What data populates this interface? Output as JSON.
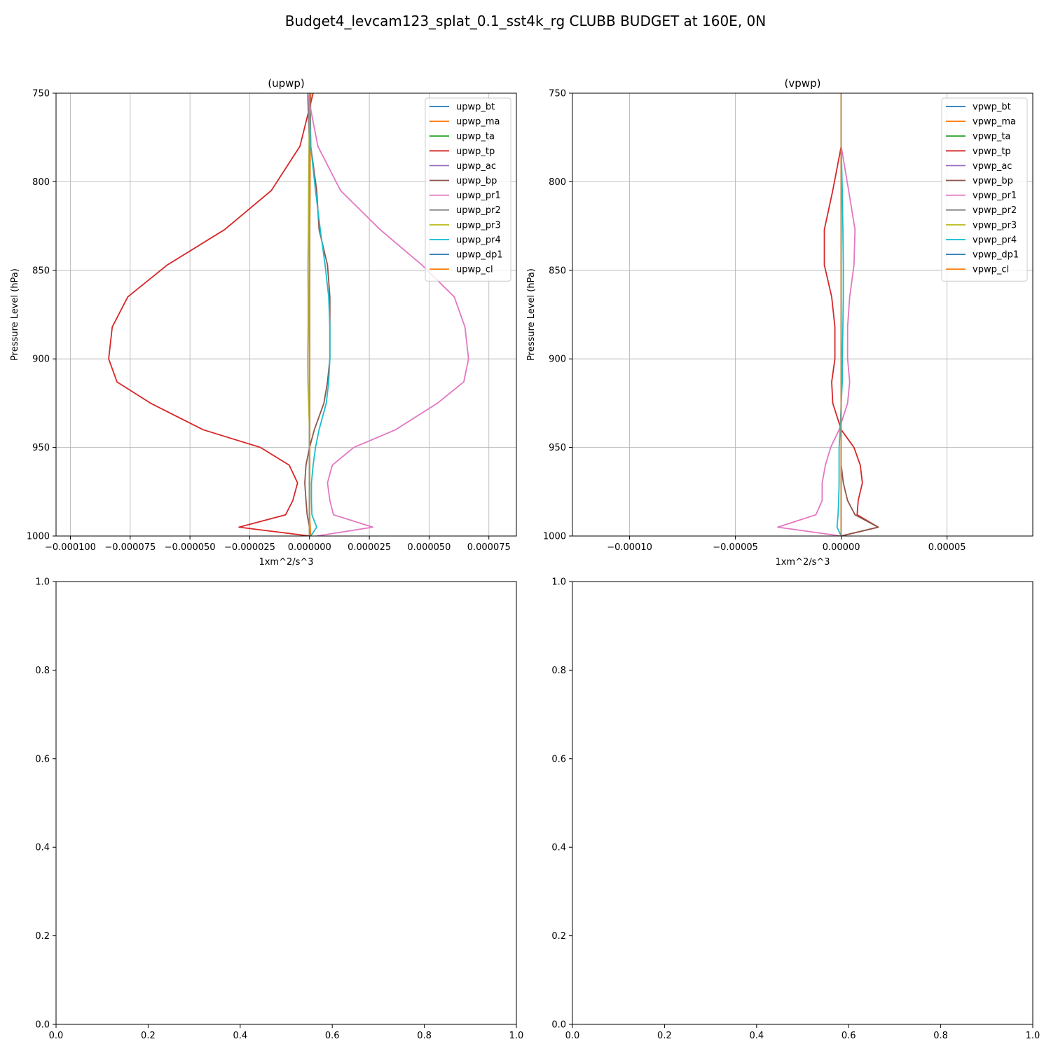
{
  "figure": {
    "suptitle": "Budget4_levcam123_splat_0.1_sst4k_rg CLUBB BUDGET at 160E, 0N"
  },
  "colors": {
    "bt": "#1f77b4",
    "ma": "#ff7f0e",
    "ta": "#2ca02c",
    "tp": "#d62728",
    "ac": "#9467bd",
    "bp": "#8c564b",
    "pr1": "#e377c2",
    "pr2": "#7f7f7f",
    "pr3": "#bcbd22",
    "pr4": "#17becf",
    "dp1": "#1f77b4",
    "cl": "#ff7f0e",
    "grid": "#b0b0b0",
    "axis": "#000000"
  },
  "chart_data": [
    {
      "type": "line",
      "title": "(upwp)",
      "xlabel": "1xm^2/s^3",
      "ylabel": "Pressure Level (hPa)",
      "xlim": [
        -0.000106,
        8.65e-05
      ],
      "ylim": [
        1000,
        750
      ],
      "y_inverted": true,
      "grid": true,
      "legend": "top-right",
      "xticks": [
        -0.0001,
        -7.5e-05,
        -5e-05,
        -2.5e-05,
        0,
        2.5e-05,
        5e-05,
        7.5e-05
      ],
      "xtick_labels": [
        "−0.000100",
        "−0.000075",
        "−0.000050",
        "−0.000025",
        "0.000000",
        "0.000025",
        "0.000050",
        "0.000075"
      ],
      "yticks": [
        750,
        800,
        850,
        900,
        950,
        1000
      ],
      "ytick_labels": [
        "750",
        "800",
        "850",
        "900",
        "950",
        "1000"
      ],
      "levels": [
        750,
        780,
        805,
        827,
        847,
        865,
        882,
        900,
        913,
        925,
        940,
        950,
        960,
        970,
        980,
        988,
        995,
        1000
      ],
      "series": [
        {
          "name": "upwp_bt",
          "color_key": "bt",
          "values": [
            0,
            0,
            0,
            0,
            0,
            0,
            0,
            0,
            0,
            0,
            0,
            0,
            0,
            0,
            0,
            0,
            0,
            0
          ]
        },
        {
          "name": "upwp_ma",
          "color_key": "ma",
          "values": [
            5e-07,
            3e-07,
            2e-07,
            1e-07,
            0,
            -1e-07,
            -1e-07,
            -1e-07,
            0,
            0,
            0,
            0,
            0,
            0,
            0,
            0,
            3e-07,
            5e-07
          ]
        },
        {
          "name": "upwp_ta",
          "color_key": "ta",
          "values": [
            0,
            0,
            0,
            0,
            0,
            0,
            0,
            0,
            0,
            0,
            0,
            0,
            0,
            0,
            0,
            0,
            0,
            0
          ]
        },
        {
          "name": "upwp_tp",
          "color_key": "tp",
          "values": [
            1.5e-06,
            -4e-06,
            -1.6e-05,
            -3.55e-05,
            -5.95e-05,
            -7.6e-05,
            -8.25e-05,
            -8.4e-05,
            -8.05e-05,
            -6.65e-05,
            -4.45e-05,
            -2.05e-05,
            -8.5e-06,
            -5e-06,
            -7e-06,
            -1e-05,
            -2.95e-05,
            0
          ]
        },
        {
          "name": "upwp_ac",
          "color_key": "ac",
          "values": [
            -8e-07,
            0,
            0,
            0,
            0,
            0,
            0,
            0,
            0,
            0,
            0,
            0,
            0,
            0,
            0,
            0,
            0,
            0
          ]
        },
        {
          "name": "upwp_bp",
          "color_key": "bp",
          "values": [
            2e-07,
            5e-07,
            3e-06,
            4e-06,
            7.5e-06,
            8.5e-06,
            8.5e-06,
            8.5e-06,
            7.5e-06,
            6e-06,
            2e-06,
            0,
            -1.5e-06,
            -2e-06,
            -1.5e-06,
            -1e-06,
            0,
            0
          ]
        },
        {
          "name": "upwp_pr1",
          "color_key": "pr1",
          "values": [
            -8e-07,
            3.5e-06,
            1.3e-05,
            2.95e-05,
            4.7e-05,
            6.05e-05,
            6.5e-05,
            6.65e-05,
            6.45e-05,
            5.35e-05,
            3.6e-05,
            1.85e-05,
            9.5e-06,
            7.5e-06,
            8.5e-06,
            1e-05,
            2.65e-05,
            3e-06
          ]
        },
        {
          "name": "upwp_pr2",
          "color_key": "pr2",
          "values": [
            0,
            0,
            0,
            0,
            0,
            0,
            0,
            0,
            0,
            0,
            0,
            0,
            0,
            0,
            0,
            0,
            0,
            0
          ]
        },
        {
          "name": "upwp_pr3",
          "color_key": "pr3",
          "values": [
            0,
            -2e-07,
            -4e-07,
            -5e-07,
            -7e-07,
            -6e-07,
            -6e-07,
            -8e-07,
            -7e-07,
            -4e-07,
            0,
            0,
            0,
            0,
            0,
            0,
            0,
            0
          ]
        },
        {
          "name": "upwp_pr4",
          "color_key": "pr4",
          "values": [
            0,
            5e-07,
            2.5e-06,
            4.5e-06,
            6.5e-06,
            8e-06,
            8.5e-06,
            8.5e-06,
            8e-06,
            7e-06,
            4e-06,
            2.5e-06,
            1.5e-06,
            8e-07,
            8e-07,
            1e-06,
            3e-06,
            5e-07
          ]
        },
        {
          "name": "upwp_dp1",
          "color_key": "dp1",
          "values": [
            0,
            0,
            0,
            0,
            0,
            0,
            0,
            0,
            0,
            0,
            0,
            0,
            0,
            0,
            0,
            0,
            0,
            0
          ]
        },
        {
          "name": "upwp_cl",
          "color_key": "cl",
          "values": [
            0,
            0,
            0,
            0,
            0,
            0,
            0,
            0,
            0,
            0,
            0,
            0,
            0,
            0,
            0,
            0,
            0,
            0
          ]
        }
      ]
    },
    {
      "type": "line",
      "title": "(vpwp)",
      "xlabel": "1xm^2/s^3",
      "ylabel": "Pressure Level (hPa)",
      "xlim": [
        -0.000127,
        9.05e-05
      ],
      "ylim": [
        1000,
        750
      ],
      "y_inverted": true,
      "grid": true,
      "legend": "top-right",
      "xticks": [
        -0.0001,
        -5e-05,
        0,
        5e-05
      ],
      "xtick_labels": [
        "−0.00010",
        "−0.00005",
        "0.00000",
        "0.00005"
      ],
      "yticks": [
        750,
        800,
        850,
        900,
        950,
        1000
      ],
      "ytick_labels": [
        "750",
        "800",
        "850",
        "900",
        "950",
        "1000"
      ],
      "levels": [
        750,
        780,
        805,
        827,
        847,
        865,
        882,
        900,
        913,
        925,
        940,
        950,
        960,
        970,
        980,
        988,
        995,
        1000
      ],
      "series": [
        {
          "name": "vpwp_bt",
          "color_key": "bt",
          "values": [
            0,
            0,
            0,
            0,
            0,
            0,
            0,
            0,
            0,
            0,
            0,
            0,
            0,
            0,
            0,
            0,
            0,
            0
          ]
        },
        {
          "name": "vpwp_ma",
          "color_key": "ma",
          "values": [
            0,
            0,
            0,
            0,
            0,
            0,
            0,
            0,
            0,
            0,
            0,
            0,
            0,
            0,
            0,
            0,
            0,
            0
          ]
        },
        {
          "name": "vpwp_ta",
          "color_key": "ta",
          "values": [
            0,
            0,
            0,
            0,
            0,
            0,
            0,
            0,
            0,
            0,
            0,
            0,
            0,
            0,
            0,
            0,
            0,
            0
          ]
        },
        {
          "name": "vpwp_tp",
          "color_key": "tp",
          "values": [
            0,
            0,
            -4e-06,
            -8e-06,
            -8e-06,
            -4.5e-06,
            -3e-06,
            -3e-06,
            -4.5e-06,
            -4e-06,
            0,
            6e-06,
            9e-06,
            1e-05,
            8e-06,
            7.5e-06,
            1.75e-05,
            0
          ]
        },
        {
          "name": "vpwp_ac",
          "color_key": "ac",
          "values": [
            0,
            0,
            0,
            0,
            0,
            0,
            0,
            0,
            0,
            0,
            0,
            0,
            0,
            0,
            0,
            0,
            0,
            0
          ]
        },
        {
          "name": "vpwp_bp",
          "color_key": "bp",
          "values": [
            0,
            0,
            0,
            0,
            0,
            0,
            0,
            0,
            0,
            0,
            0,
            0,
            0,
            1e-06,
            3e-06,
            6.5e-06,
            1.75e-05,
            0
          ]
        },
        {
          "name": "vpwp_pr1",
          "color_key": "pr1",
          "values": [
            0,
            0,
            3.5e-06,
            6.5e-06,
            6e-06,
            4e-06,
            3e-06,
            3e-06,
            4e-06,
            3e-06,
            -1e-06,
            -5e-06,
            -7.5e-06,
            -9e-06,
            -9e-06,
            -1.2e-05,
            -3e-05,
            0
          ]
        },
        {
          "name": "vpwp_pr2",
          "color_key": "pr2",
          "values": [
            0,
            0,
            0,
            0,
            0,
            0,
            0,
            0,
            0,
            0,
            0,
            0,
            0,
            0,
            0,
            0,
            0,
            0
          ]
        },
        {
          "name": "vpwp_pr3",
          "color_key": "pr3",
          "values": [
            0,
            0,
            0,
            0,
            0,
            0,
            0,
            0,
            0,
            0,
            0,
            0,
            0,
            0,
            0,
            0,
            0,
            0
          ]
        },
        {
          "name": "vpwp_pr4",
          "color_key": "pr4",
          "values": [
            0,
            0,
            5e-07,
            8e-07,
            1e-06,
            1e-06,
            8e-07,
            5e-07,
            5e-07,
            0,
            -5e-07,
            -1e-06,
            -1e-06,
            -1e-06,
            -1.2e-06,
            -1.5e-06,
            -2e-06,
            0
          ]
        },
        {
          "name": "vpwp_dp1",
          "color_key": "dp1",
          "values": [
            0,
            0,
            0,
            0,
            0,
            0,
            0,
            0,
            0,
            0,
            0,
            0,
            0,
            0,
            0,
            0,
            0,
            0
          ]
        },
        {
          "name": "vpwp_cl",
          "color_key": "cl",
          "values": [
            0,
            0,
            0,
            0,
            0,
            0,
            0,
            0,
            0,
            0,
            0,
            0,
            0,
            0,
            0,
            0,
            0,
            0
          ]
        }
      ]
    },
    {
      "type": "line",
      "title": "",
      "xlim": [
        0,
        1
      ],
      "ylim": [
        0,
        1
      ],
      "grid": false,
      "xticks": [
        0,
        0.2,
        0.4,
        0.6,
        0.8,
        1.0
      ],
      "xtick_labels": [
        "0.0",
        "0.2",
        "0.4",
        "0.6",
        "0.8",
        "1.0"
      ],
      "yticks": [
        0,
        0.2,
        0.4,
        0.6,
        0.8,
        1.0
      ],
      "ytick_labels": [
        "0.0",
        "0.2",
        "0.4",
        "0.6",
        "0.8",
        "1.0"
      ],
      "series": []
    },
    {
      "type": "line",
      "title": "",
      "xlim": [
        0,
        1
      ],
      "ylim": [
        0,
        1
      ],
      "grid": false,
      "xticks": [
        0,
        0.2,
        0.4,
        0.6,
        0.8,
        1.0
      ],
      "xtick_labels": [
        "0.0",
        "0.2",
        "0.4",
        "0.6",
        "0.8",
        "1.0"
      ],
      "yticks": [
        0,
        0.2,
        0.4,
        0.6,
        0.8,
        1.0
      ],
      "ytick_labels": [
        "0.0",
        "0.2",
        "0.4",
        "0.6",
        "0.8",
        "1.0"
      ],
      "series": []
    }
  ]
}
